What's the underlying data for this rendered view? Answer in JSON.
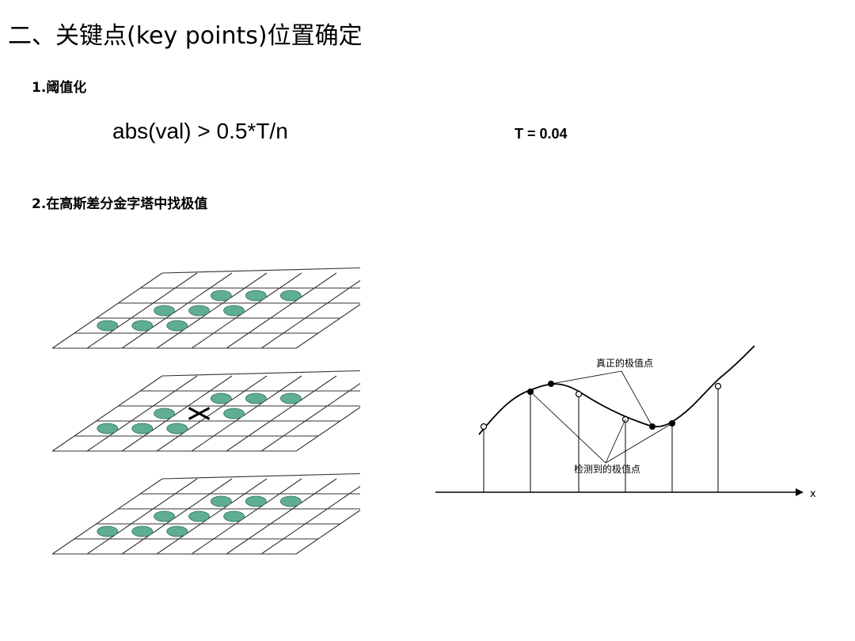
{
  "title": "二、关键点(key points)位置确定",
  "section1": {
    "heading": "1.阈值化",
    "formula": "abs(val) >  0.5*T/n",
    "t_value": "T = 0.04"
  },
  "section2": {
    "heading": "2.在高斯差分金字塔中找极值"
  },
  "curve_diagram": {
    "true_extrema_label": "真正的极值点",
    "detected_extrema_label": "检测到的极值点",
    "x_axis_label": "x"
  },
  "colors": {
    "ellipse_fill": "#5fae93",
    "line": "#000000"
  }
}
